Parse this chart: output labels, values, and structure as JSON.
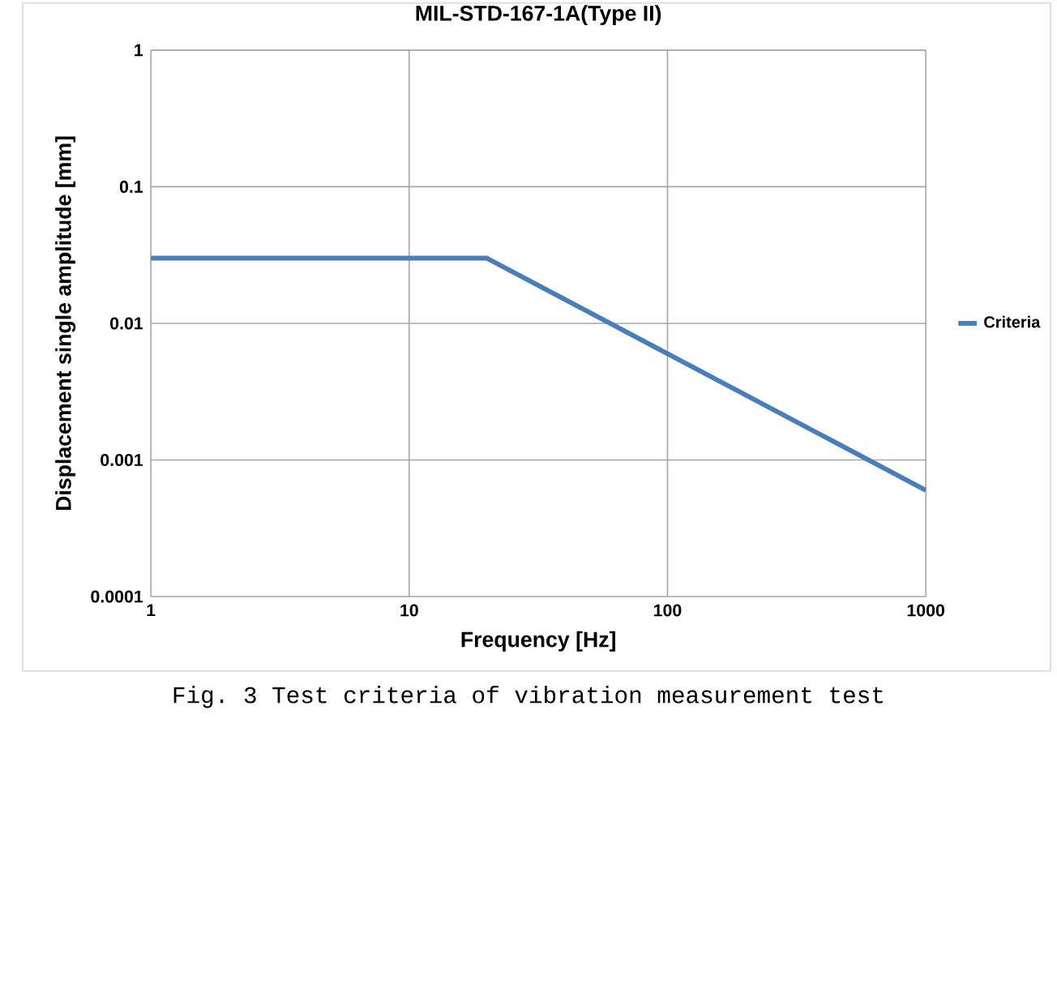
{
  "chart_data": {
    "type": "line",
    "title": "MIL-STD-167-1A(Type II)",
    "xlabel": "Frequency [Hz]",
    "ylabel": "Displacement single  amplitude [mm]",
    "log": "xy",
    "grid": true,
    "legend": "right",
    "xlim": [
      1,
      1000
    ],
    "xticks": [
      1,
      10,
      100,
      1000
    ],
    "ylim": [
      0.0001,
      1
    ],
    "yticks": [
      0.0001,
      0.001,
      0.01,
      0.1,
      1
    ],
    "series": [
      {
        "name": "Criteria",
        "color": "#4a7ebb",
        "x": [
          1,
          20,
          1000
        ],
        "values": [
          0.03,
          0.03,
          0.0006
        ]
      }
    ],
    "annotations": [
      "Fig. 3 Test criteria of vibration measurement test"
    ]
  }
}
